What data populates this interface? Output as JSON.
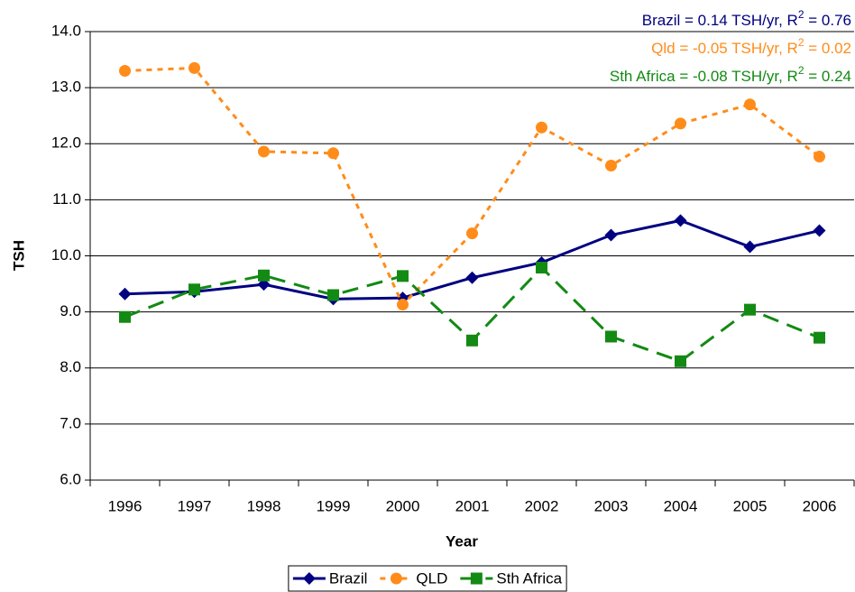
{
  "chart_data": {
    "type": "line",
    "x_label": "Year",
    "y_label": "TSH",
    "categories": [
      "1996",
      "1997",
      "1998",
      "1999",
      "2000",
      "2001",
      "2002",
      "2003",
      "2004",
      "2005",
      "2006"
    ],
    "series": [
      {
        "name": "Brazil",
        "color": "#000080",
        "marker": "diamond",
        "line_style": "solid",
        "values": [
          9.32,
          9.36,
          9.49,
          9.23,
          9.25,
          9.61,
          9.88,
          10.37,
          10.63,
          10.16,
          10.45
        ]
      },
      {
        "name": "QLD",
        "color": "#ff8c1a",
        "marker": "circle",
        "line_style": "dotted",
        "values": [
          13.3,
          13.35,
          11.86,
          11.83,
          9.13,
          10.4,
          12.29,
          11.61,
          12.36,
          12.7,
          11.77
        ]
      },
      {
        "name": "Sth Africa",
        "color": "#138a13",
        "marker": "square",
        "line_style": "dashed",
        "values": [
          8.91,
          9.4,
          9.65,
          9.3,
          9.64,
          8.49,
          9.79,
          8.56,
          8.12,
          9.04,
          8.54
        ]
      }
    ],
    "ylim": [
      6.0,
      14.0
    ],
    "yticks": [
      {
        "value": 6,
        "label": "6.0"
      },
      {
        "value": 7,
        "label": "7.0"
      },
      {
        "value": 8,
        "label": "8.0"
      },
      {
        "value": 9,
        "label": "9.0"
      },
      {
        "value": 10,
        "label": "10.0"
      },
      {
        "value": 11,
        "label": "11.0"
      },
      {
        "value": 12,
        "label": "12.0"
      },
      {
        "value": 13,
        "label": "13.0"
      },
      {
        "value": 14,
        "label": "14.0"
      }
    ],
    "grid": true,
    "legend": "bottom",
    "annotations": [
      {
        "text": "Brazil = 0.14 TSH/yr, R",
        "sup": "2",
        "tail": " = 0.76",
        "color": "#000080"
      },
      {
        "text": "Qld = -0.05 TSH/yr, R",
        "sup": "2",
        "tail": " = 0.02",
        "color": "#ff8c1a"
      },
      {
        "text": "Sth Africa = -0.08 TSH/yr, R",
        "sup": "2",
        "tail": " = 0.24",
        "color": "#138a13"
      }
    ]
  }
}
